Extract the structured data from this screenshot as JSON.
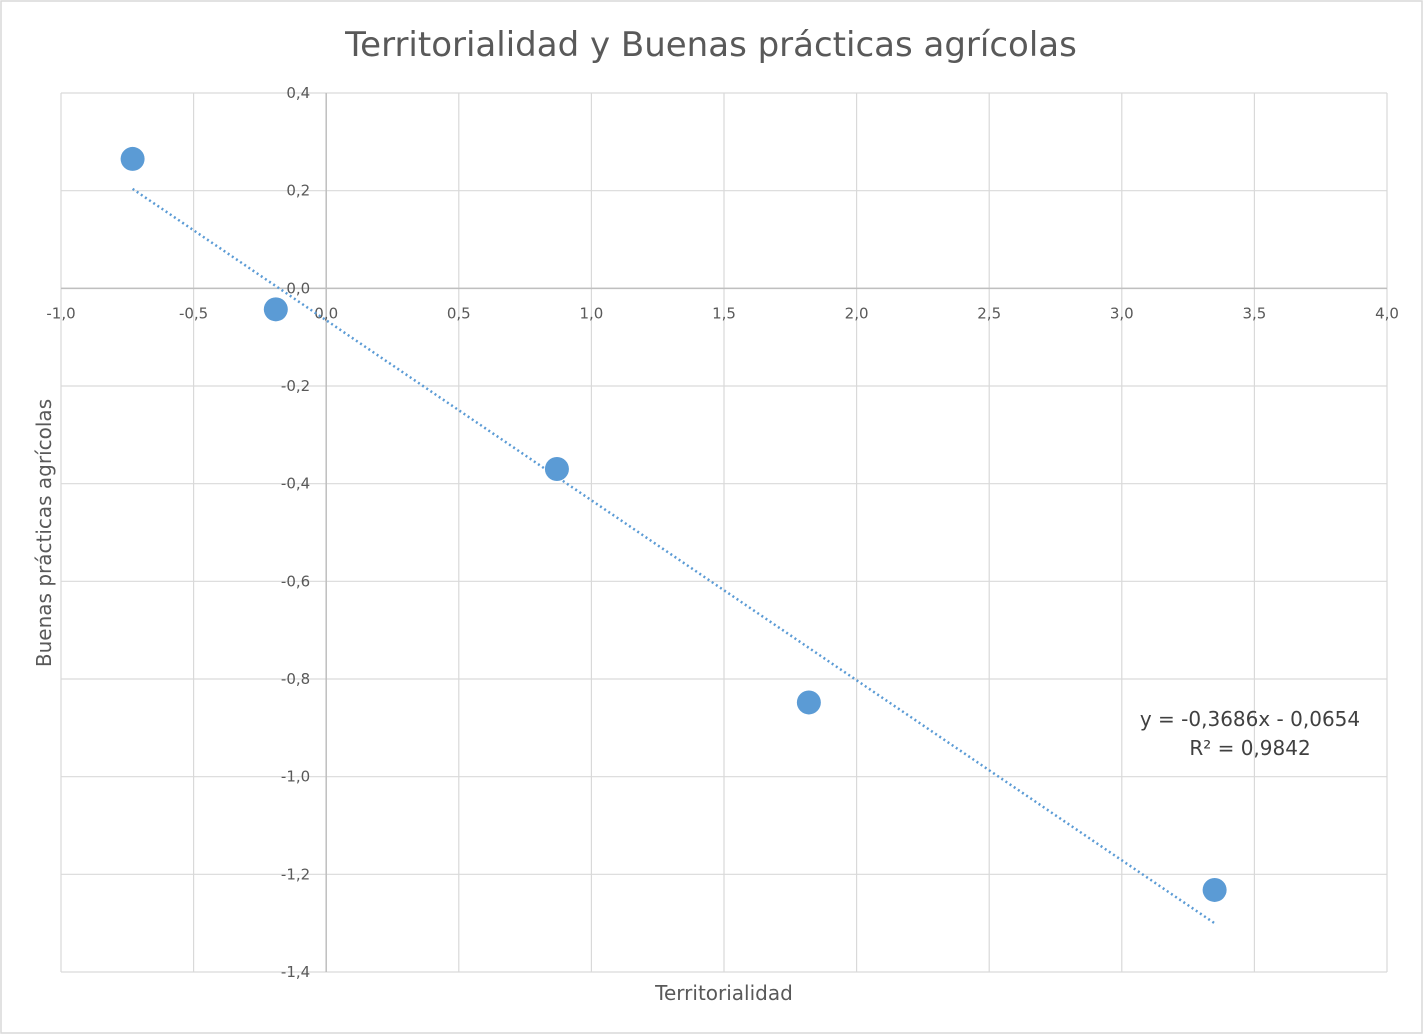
{
  "chart_data": {
    "type": "scatter",
    "title": "Territorialidad y Buenas prácticas agrícolas",
    "xlabel": "Territorialidad",
    "ylabel": "Buenas prácticas agrícolas",
    "xlim": [
      -1.0,
      4.0
    ],
    "ylim": [
      -1.4,
      0.4
    ],
    "x_ticks": [
      "-1,0",
      "-0,5",
      "0,0",
      "0,5",
      "1,0",
      "1,5",
      "2,0",
      "2,5",
      "3,0",
      "3,5",
      "4,0"
    ],
    "y_ticks": [
      "0,4",
      "0,2",
      "0,0",
      "-0,2",
      "-0,4",
      "-0,6",
      "-0,8",
      "-1,0",
      "-1,2",
      "-1,4"
    ],
    "grid": true,
    "legend": "none",
    "marker_color": "#5B9BD5",
    "trendline_color": "#5B9BD5",
    "points": [
      {
        "x": -0.73,
        "y": 0.265
      },
      {
        "x": -0.19,
        "y": -0.043
      },
      {
        "x": 0.87,
        "y": -0.37
      },
      {
        "x": 1.82,
        "y": -0.848
      },
      {
        "x": 3.35,
        "y": -1.232
      }
    ],
    "trendline": {
      "type": "linear",
      "slope": -0.3686,
      "intercept": -0.0654,
      "x_range": [
        -0.73,
        3.35
      ],
      "equation": "y = -0,3686x - 0,0654",
      "r_squared": "R² = 0,9842"
    }
  }
}
